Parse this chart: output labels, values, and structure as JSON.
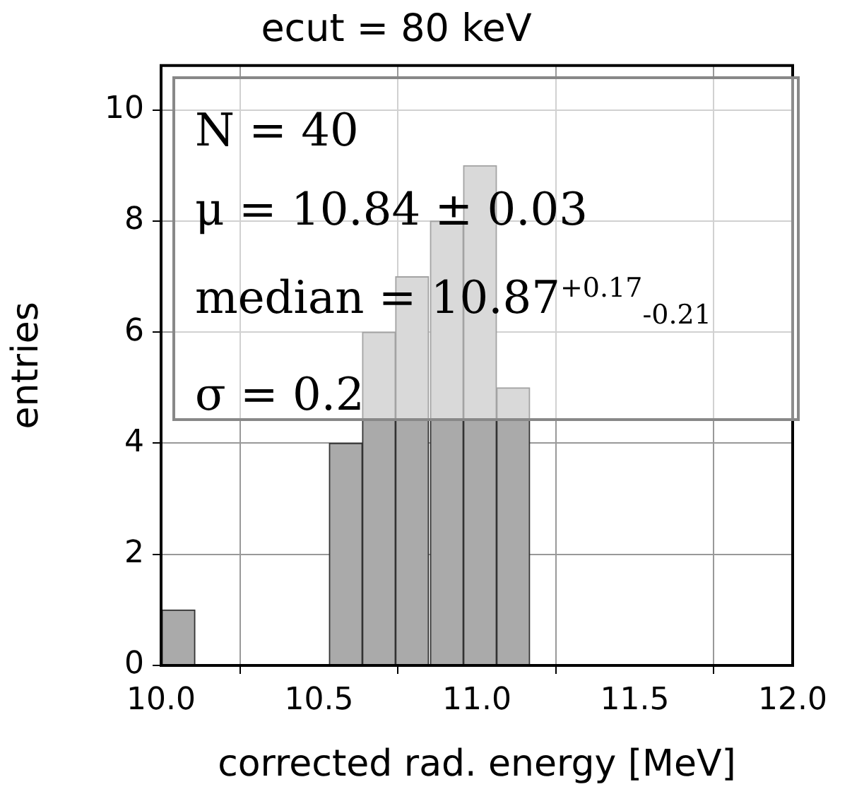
{
  "chart_data": {
    "type": "histogram",
    "title": "ecut = 80 keV",
    "xlabel": "corrected rad. energy [MeV]",
    "ylabel": "entries",
    "bins": [
      10.0,
      10.11,
      10.21,
      10.32,
      10.43,
      10.53,
      10.64,
      10.74,
      10.85,
      10.96,
      11.06,
      11.17
    ],
    "values": [
      1,
      0,
      0,
      0,
      0,
      4,
      6,
      7,
      8,
      9,
      5
    ],
    "color": "#aaaaaa",
    "xlim": [
      10.0,
      12.0
    ],
    "xticks": [
      {
        "value": 10,
        "label": "10.0"
      },
      {
        "value": 10.5,
        "label": "10.5"
      },
      {
        "value": 11,
        "label": "11.0"
      },
      {
        "value": 11.5,
        "label": "11.5"
      },
      {
        "value": 12,
        "label": "12.0"
      }
    ],
    "ylim": [
      0,
      10.8
    ],
    "yticks": [
      0,
      2,
      4,
      6,
      8,
      10
    ],
    "grid": true,
    "annotations": [
      "N = 40",
      "μ = 10.84 ± 0.03",
      "median = 10.87$^{+0.17}$$_{-0.21}$",
      "σ = 0.2"
    ]
  }
}
